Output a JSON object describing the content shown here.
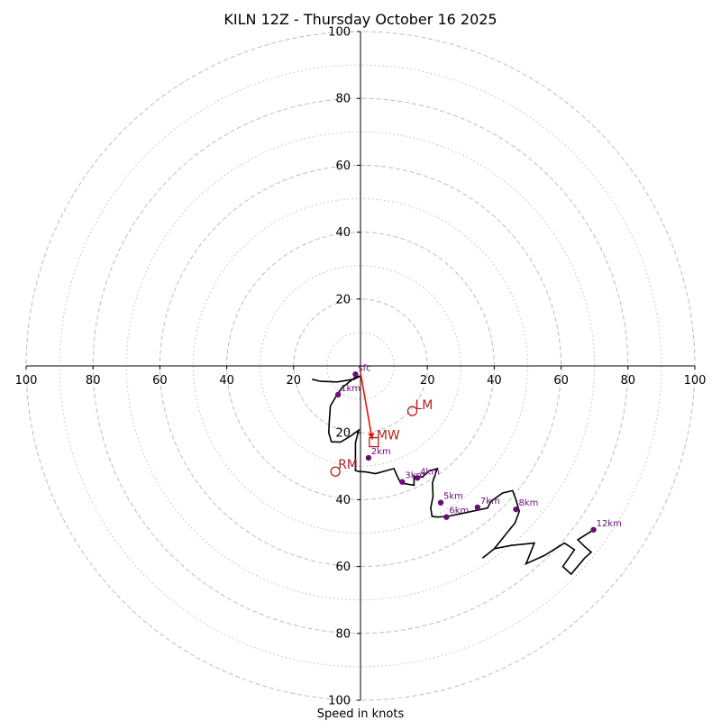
{
  "chart_data": {
    "type": "hodograph",
    "title": "KILN 12Z - Thursday October 16 2025",
    "xlabel": "Speed in knots",
    "xlim": [
      -100,
      100
    ],
    "ylim": [
      -100,
      100
    ],
    "major_rings": [
      20,
      40,
      60,
      80,
      100
    ],
    "minor_rings": [
      10,
      30,
      50,
      70,
      90
    ],
    "x_ticks": [
      {
        "value": -100,
        "label": "100"
      },
      {
        "value": -80,
        "label": "80"
      },
      {
        "value": -60,
        "label": "60"
      },
      {
        "value": -40,
        "label": "40"
      },
      {
        "value": -20,
        "label": "20"
      },
      {
        "value": 20,
        "label": "20"
      },
      {
        "value": 40,
        "label": "40"
      },
      {
        "value": 60,
        "label": "60"
      },
      {
        "value": 80,
        "label": "80"
      },
      {
        "value": 100,
        "label": "100"
      }
    ],
    "y_ticks": [
      {
        "value": 100,
        "label": "100"
      },
      {
        "value": 80,
        "label": "80"
      },
      {
        "value": 60,
        "label": "60"
      },
      {
        "value": 40,
        "label": "40"
      },
      {
        "value": 20,
        "label": "20"
      },
      {
        "value": -20,
        "label": "20"
      },
      {
        "value": -40,
        "label": "40"
      },
      {
        "value": -60,
        "label": "60"
      },
      {
        "value": -80,
        "label": "80"
      },
      {
        "value": -100,
        "label": "100"
      }
    ],
    "hodograph_trace": [
      [
        -14.5,
        -4.0
      ],
      [
        -12.0,
        -4.6
      ],
      [
        -7.0,
        -4.8
      ],
      [
        -2.0,
        -4.0
      ],
      [
        0.0,
        -3.0
      ],
      [
        -1.7,
        -3.5
      ],
      [
        -5.5,
        -6.5
      ],
      [
        -7.0,
        -8.6
      ],
      [
        -9.0,
        -12.0
      ],
      [
        -9.3,
        -16.0
      ],
      [
        -9.5,
        -20.0
      ],
      [
        -8.7,
        -22.7
      ],
      [
        -6.0,
        -22.8
      ],
      [
        -3.0,
        -21.0
      ],
      [
        -0.5,
        -19.2
      ],
      [
        -1.5,
        -23.0
      ],
      [
        -1.5,
        -27.0
      ],
      [
        -1.5,
        -31.3
      ],
      [
        -0.4,
        -31.6
      ],
      [
        1.5,
        -31.7
      ],
      [
        4.5,
        -32.2
      ],
      [
        10.0,
        -30.7
      ],
      [
        11.0,
        -33.0
      ],
      [
        12.0,
        -35.0
      ],
      [
        16.0,
        -35.7
      ],
      [
        16.0,
        -33.0
      ],
      [
        18.5,
        -33.2
      ],
      [
        20.5,
        -31.4
      ],
      [
        23.0,
        -30.7
      ],
      [
        22.5,
        -32.0
      ],
      [
        21.5,
        -35.0
      ],
      [
        21.7,
        -39.0
      ],
      [
        21.0,
        -42.5
      ],
      [
        21.4,
        -45.0
      ],
      [
        23.0,
        -45.2
      ],
      [
        26.0,
        -45.0
      ],
      [
        31.0,
        -44.0
      ],
      [
        38.0,
        -42.5
      ],
      [
        39.0,
        -40.5
      ],
      [
        42.5,
        -38.0
      ],
      [
        45.5,
        -37.3
      ],
      [
        46.5,
        -40.0
      ],
      [
        47.5,
        -43.5
      ],
      [
        46.2,
        -47.0
      ],
      [
        44.0,
        -49.7
      ],
      [
        40.0,
        -54.7
      ],
      [
        36.5,
        -57.5
      ],
      [
        40.0,
        -54.7
      ],
      [
        45.0,
        -53.7
      ],
      [
        52.0,
        -53.0
      ],
      [
        50.0,
        -58.0
      ],
      [
        49.5,
        -59.2
      ],
      [
        55.0,
        -56.7
      ],
      [
        61.0,
        -53.0
      ],
      [
        64.0,
        -55.0
      ],
      [
        60.5,
        -60.0
      ],
      [
        63.0,
        -62.3
      ],
      [
        67.0,
        -57.5
      ],
      [
        69.0,
        -55.7
      ],
      [
        67.0,
        -54.0
      ],
      [
        65.0,
        -52.0
      ],
      [
        69.7,
        -49.0
      ]
    ],
    "height_markers": [
      {
        "label": "sfc",
        "u": -1.5,
        "v": -2.5
      },
      {
        "label": "1km",
        "u": -6.7,
        "v": -8.6
      },
      {
        "label": "2km",
        "u": 2.4,
        "v": -27.5
      },
      {
        "label": "3km",
        "u": 12.5,
        "v": -34.7
      },
      {
        "label": "4km",
        "u": 17.0,
        "v": -33.5
      },
      {
        "label": "5km",
        "u": 24.0,
        "v": -40.9
      },
      {
        "label": "6km",
        "u": 25.7,
        "v": -45.2
      },
      {
        "label": "7km",
        "u": 35.0,
        "v": -42.3
      },
      {
        "label": "8km",
        "u": 46.5,
        "v": -42.9
      },
      {
        "label": "12km",
        "u": 69.7,
        "v": -49.0
      }
    ],
    "storm_motion": {
      "bunkers_left": {
        "label": "LM",
        "u": 15.5,
        "v": -13.5
      },
      "mean_wind": {
        "label": "MW",
        "u": 4.0,
        "v": -22.8
      },
      "bunkers_right": {
        "label": "RM",
        "u": -7.5,
        "v": -31.6
      },
      "shear_vector": {
        "from": [
          0.0,
          -2.0
        ],
        "to": [
          3.5,
          -22.0
        ]
      }
    },
    "colors": {
      "trace": "#000000",
      "markers": "#6a0d7a",
      "storm": "#b22222",
      "shear_arrow": "#e8140c",
      "grid": "#bdbdbd",
      "axis": "#000000"
    }
  }
}
